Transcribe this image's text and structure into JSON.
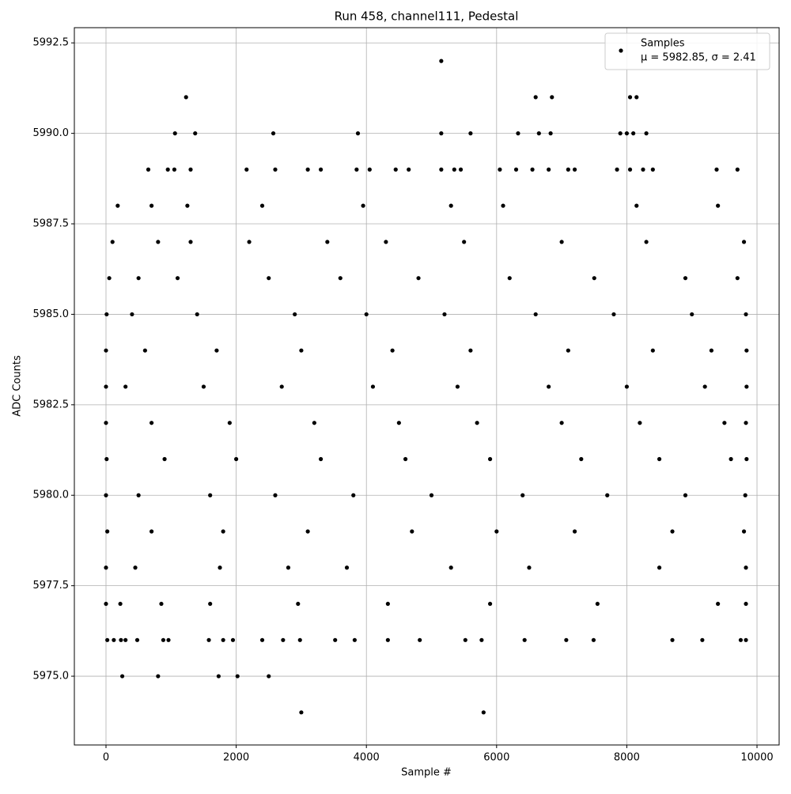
{
  "chart_data": {
    "type": "scatter",
    "title": "Run 458, channel111, Pedestal",
    "x_label": "Sample #",
    "y_label": "ADC Counts",
    "legend_position": "upper right",
    "legend_note": "μ = 5982.85, σ = 2.41",
    "grid": true,
    "xlim": [
      -486,
      10340
    ],
    "ylim": [
      5973.1,
      5992.92
    ],
    "xticks": [
      0,
      2000,
      4000,
      6000,
      8000,
      10000
    ],
    "yticks": [
      {
        "value": 5975,
        "label": "5975.0"
      },
      5977.5,
      {
        "value": 5980,
        "label": "5980.0"
      },
      5982.5,
      {
        "value": 5985,
        "label": "5985.0"
      },
      5987.5,
      {
        "value": 5990,
        "label": "5990.0"
      },
      5992.5
    ],
    "x": [
      5150,
      1230,
      6600,
      6850,
      8050,
      8150,
      1060,
      1370,
      2570,
      3870,
      5150,
      5600,
      6330,
      6650,
      6830,
      7900,
      8000,
      8100,
      8300,
      650,
      950,
      1050,
      1300,
      2160,
      2600,
      3100,
      3300,
      3850,
      4050,
      4450,
      4650,
      5150,
      5350,
      5450,
      6050,
      6300,
      6550,
      6800,
      7100,
      7200,
      7850,
      8050,
      8250,
      8400,
      9380,
      9700,
      180,
      700,
      1250,
      2400,
      3950,
      5300,
      6100,
      8150,
      9400,
      100,
      800,
      1300,
      2200,
      3400,
      4300,
      5500,
      7000,
      8300,
      9800,
      50,
      500,
      1100,
      2500,
      3600,
      4800,
      6200,
      7500,
      8900,
      9700,
      10,
      400,
      1400,
      2900,
      4000,
      5200,
      6600,
      7800,
      9000,
      9830,
      0,
      600,
      1700,
      3000,
      4400,
      5600,
      7100,
      8400,
      9300,
      9840,
      0,
      300,
      1500,
      2700,
      4100,
      5400,
      6800,
      8000,
      9200,
      9840,
      0,
      700,
      1900,
      3200,
      4500,
      5700,
      7000,
      8200,
      9500,
      9830,
      10,
      900,
      2000,
      3300,
      4600,
      5900,
      7300,
      8500,
      9600,
      9840,
      0,
      500,
      1600,
      2600,
      3800,
      5000,
      6400,
      7700,
      8900,
      9820,
      20,
      700,
      1800,
      3100,
      4700,
      6000,
      7200,
      8700,
      9800,
      0,
      450,
      1750,
      2800,
      3700,
      5300,
      6500,
      8500,
      9830,
      0,
      220,
      850,
      1600,
      2950,
      4330,
      5900,
      7550,
      9400,
      9830,
      20,
      120,
      230,
      300,
      480,
      880,
      960,
      1580,
      1800,
      1950,
      2400,
      2720,
      2980,
      3520,
      3820,
      4330,
      4820,
      5520,
      5770,
      6430,
      7070,
      7490,
      8700,
      9160,
      9750,
      9830,
      250,
      800,
      1730,
      2020,
      2500,
      3000,
      5800
    ],
    "series": [
      {
        "name": "Samples",
        "color": "#000000",
        "values": [
          5992,
          5991,
          5991,
          5991,
          5991,
          5991,
          5990,
          5990,
          5990,
          5990,
          5990,
          5990,
          5990,
          5990,
          5990,
          5990,
          5990,
          5990,
          5990,
          5989,
          5989,
          5989,
          5989,
          5989,
          5989,
          5989,
          5989,
          5989,
          5989,
          5989,
          5989,
          5989,
          5989,
          5989,
          5989,
          5989,
          5989,
          5989,
          5989,
          5989,
          5989,
          5989,
          5989,
          5989,
          5989,
          5989,
          5988,
          5988,
          5988,
          5988,
          5988,
          5988,
          5988,
          5988,
          5988,
          5987,
          5987,
          5987,
          5987,
          5987,
          5987,
          5987,
          5987,
          5987,
          5987,
          5986,
          5986,
          5986,
          5986,
          5986,
          5986,
          5986,
          5986,
          5986,
          5986,
          5985,
          5985,
          5985,
          5985,
          5985,
          5985,
          5985,
          5985,
          5985,
          5985,
          5984,
          5984,
          5984,
          5984,
          5984,
          5984,
          5984,
          5984,
          5984,
          5984,
          5983,
          5983,
          5983,
          5983,
          5983,
          5983,
          5983,
          5983,
          5983,
          5983,
          5982,
          5982,
          5982,
          5982,
          5982,
          5982,
          5982,
          5982,
          5982,
          5982,
          5981,
          5981,
          5981,
          5981,
          5981,
          5981,
          5981,
          5981,
          5981,
          5981,
          5980,
          5980,
          5980,
          5980,
          5980,
          5980,
          5980,
          5980,
          5980,
          5980,
          5979,
          5979,
          5979,
          5979,
          5979,
          5979,
          5979,
          5979,
          5979,
          5978,
          5978,
          5978,
          5978,
          5978,
          5978,
          5978,
          5978,
          5978,
          5977,
          5977,
          5977,
          5977,
          5977,
          5977,
          5977,
          5977,
          5977,
          5977,
          5976,
          5976,
          5976,
          5976,
          5976,
          5976,
          5976,
          5976,
          5976,
          5976,
          5976,
          5976,
          5976,
          5976,
          5976,
          5976,
          5976,
          5976,
          5976,
          5976,
          5976,
          5976,
          5976,
          5976,
          5976,
          5976,
          5975,
          5975,
          5975,
          5975,
          5975,
          5974,
          5974
        ]
      }
    ]
  }
}
